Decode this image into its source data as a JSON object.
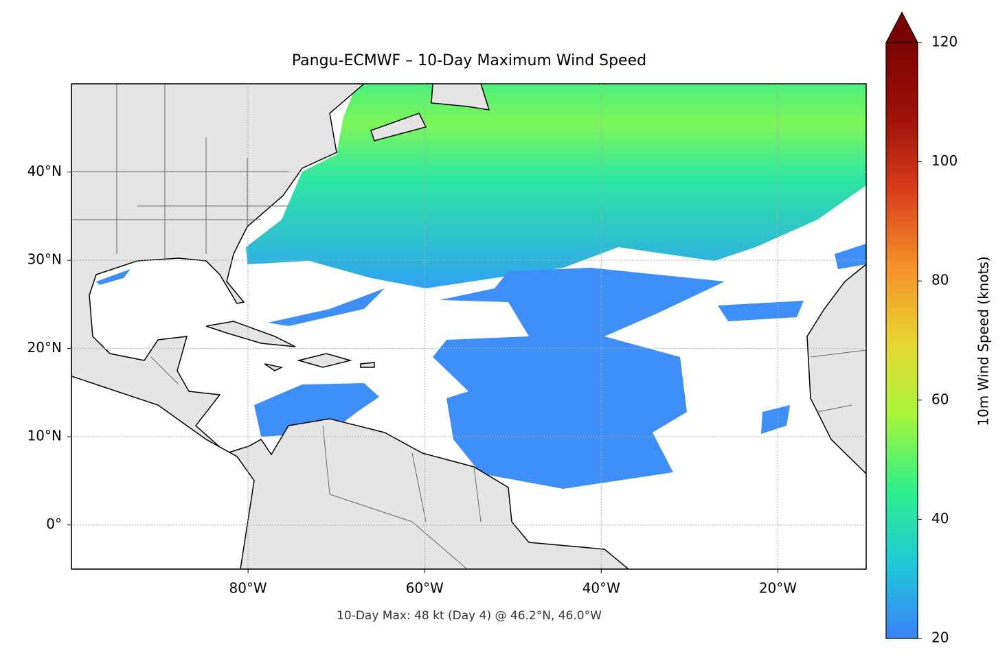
{
  "chart_data": {
    "type": "map",
    "title": "Pangu-ECMWF – 10-Day Maximum Wind Speed",
    "annotation": "10-Day Max: 48 kt (Day 4) @ 46.2°N, 46.0°W",
    "xlim": [
      -100,
      -10
    ],
    "ylim": [
      -5,
      50
    ],
    "xticks": [
      {
        "value": -80,
        "label": "80°W"
      },
      {
        "value": -60,
        "label": "60°W"
      },
      {
        "value": -40,
        "label": "40°W"
      },
      {
        "value": -20,
        "label": "20°W"
      }
    ],
    "yticks": [
      {
        "value": 0,
        "label": "0°"
      },
      {
        "value": 10,
        "label": "10°N"
      },
      {
        "value": 20,
        "label": "20°N"
      },
      {
        "value": 30,
        "label": "30°N"
      },
      {
        "value": 40,
        "label": "40°N"
      }
    ],
    "grid": true,
    "colorbar": {
      "label": "10m Wind Speed (knots)",
      "lim": [
        20,
        120
      ],
      "ticks": [
        20,
        40,
        60,
        80,
        100,
        120
      ],
      "extend": "max",
      "colors": [
        "#3c82f8",
        "#1fc8d8",
        "#2ef08a",
        "#a8f53a",
        "#e8d431",
        "#f5902a",
        "#d8401c",
        "#9e1108",
        "#7a0403"
      ]
    }
  }
}
